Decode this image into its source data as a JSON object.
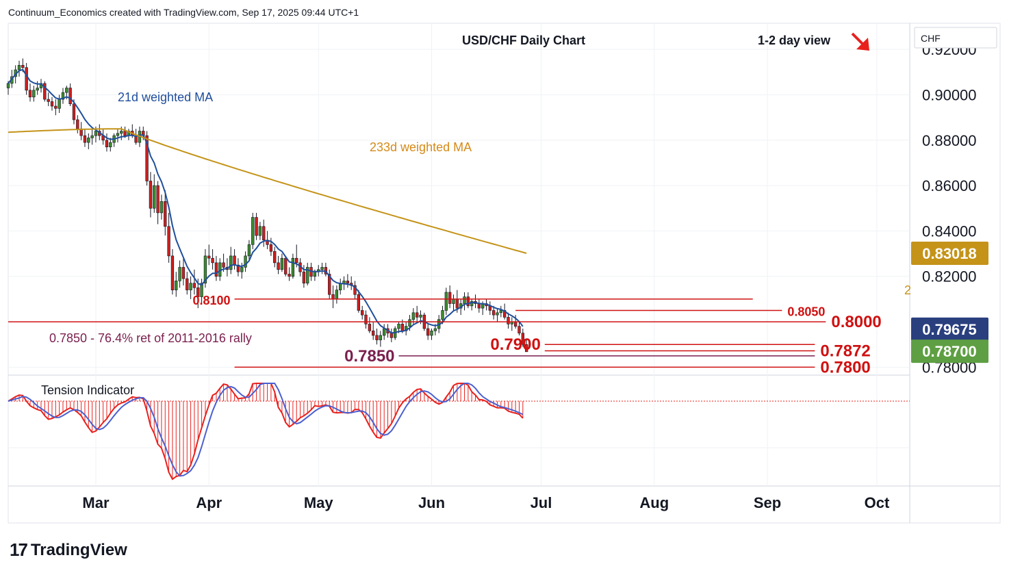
{
  "header": {
    "credit": "Continuum_Economics created with TradingView.com, Sep 17, 2025 09:44 UTC+1"
  },
  "brand": {
    "name": "TradingView",
    "logo_text": "17"
  },
  "currency_label": "CHF",
  "chart_data": {
    "type": "candlestick",
    "title": "USD/CHF Daily Chart",
    "view_text": "1-2 day view",
    "view_arrow": "down-right-arrow",
    "y_ticks": [
      "0.92000",
      "0.90000",
      "0.88000",
      "0.86000",
      "0.84000",
      "0.82000",
      "0.78000"
    ],
    "y_tick_values": [
      0.92,
      0.9,
      0.88,
      0.86,
      0.84,
      0.82,
      0.78
    ],
    "ylim": [
      0.7765,
      0.9315
    ],
    "x_months": [
      {
        "label": "Mar",
        "day": 17
      },
      {
        "label": "Apr",
        "day": 48
      },
      {
        "label": "May",
        "day": 78
      },
      {
        "label": "Jun",
        "day": 109
      },
      {
        "label": "Jul",
        "day": 139
      },
      {
        "label": "Aug",
        "day": 170
      },
      {
        "label": "Sep",
        "day": 201
      },
      {
        "label": "Oct",
        "day": 231
      }
    ],
    "day_range": [
      -7,
      240
    ],
    "price_labels": [
      {
        "text": "0.83018",
        "value": 0.83018,
        "bg": "#c49318"
      },
      {
        "text": "0.79675",
        "value": 0.79675,
        "bg": "#2a3f7e"
      },
      {
        "text": "0.78700",
        "value": 0.787,
        "bg": "#5e9f43"
      }
    ],
    "levels": [
      {
        "text": "0.8100",
        "value": 0.81,
        "from": 55,
        "to": 197,
        "label_side": "left"
      },
      {
        "text": "0.8050",
        "value": 0.805,
        "from": 132,
        "to": 205,
        "label_side": "right"
      },
      {
        "text": "0.8000",
        "value": 0.8,
        "from": -7,
        "to": 217,
        "label_side": "right"
      },
      {
        "text": "0.7900",
        "value": 0.79,
        "from": 140,
        "to": 214,
        "label_side": "left"
      },
      {
        "text": "0.7872",
        "value": 0.7872,
        "from": 140,
        "to": 214,
        "label_side": "right"
      },
      {
        "text": "0.7850",
        "value": 0.785,
        "from": 100,
        "to": 214,
        "label_side": "left"
      },
      {
        "text": "0.7800",
        "value": 0.78,
        "from": 55,
        "to": 214,
        "label_side": "right"
      }
    ],
    "annotations": {
      "ma21_label": "21d weighted MA",
      "ma233_label": "233d weighted MA",
      "fib_note": "0.7850 - 76.4% ret of 2011-2016 rally",
      "partial_label": "2"
    },
    "candles": [
      [
        -7,
        0.903,
        0.906,
        0.9,
        0.905
      ],
      [
        -6,
        0.905,
        0.911,
        0.903,
        0.908
      ],
      [
        -5,
        0.908,
        0.913,
        0.905,
        0.911
      ],
      [
        -4,
        0.911,
        0.915,
        0.908,
        0.913
      ],
      [
        -3,
        0.913,
        0.916,
        0.91,
        0.912
      ],
      [
        -2,
        0.912,
        0.914,
        0.9,
        0.902
      ],
      [
        -1,
        0.902,
        0.905,
        0.897,
        0.899
      ],
      [
        0,
        0.899,
        0.904,
        0.897,
        0.902
      ],
      [
        1,
        0.902,
        0.906,
        0.9,
        0.903
      ],
      [
        2,
        0.903,
        0.907,
        0.901,
        0.905
      ],
      [
        3,
        0.905,
        0.906,
        0.897,
        0.898
      ],
      [
        4,
        0.898,
        0.901,
        0.895,
        0.897
      ],
      [
        5,
        0.897,
        0.899,
        0.893,
        0.895
      ],
      [
        6,
        0.895,
        0.898,
        0.891,
        0.894
      ],
      [
        7,
        0.894,
        0.9,
        0.892,
        0.898
      ],
      [
        8,
        0.898,
        0.903,
        0.896,
        0.901
      ],
      [
        9,
        0.901,
        0.904,
        0.898,
        0.903
      ],
      [
        10,
        0.903,
        0.905,
        0.895,
        0.896
      ],
      [
        11,
        0.896,
        0.898,
        0.887,
        0.889
      ],
      [
        12,
        0.889,
        0.891,
        0.883,
        0.885
      ],
      [
        13,
        0.885,
        0.888,
        0.88,
        0.882
      ],
      [
        14,
        0.882,
        0.885,
        0.877,
        0.879
      ],
      [
        15,
        0.879,
        0.883,
        0.876,
        0.881
      ],
      [
        16,
        0.881,
        0.885,
        0.878,
        0.882
      ],
      [
        17,
        0.882,
        0.886,
        0.879,
        0.884
      ],
      [
        18,
        0.884,
        0.887,
        0.88,
        0.882
      ],
      [
        19,
        0.882,
        0.885,
        0.878,
        0.88
      ],
      [
        20,
        0.88,
        0.883,
        0.875,
        0.877
      ],
      [
        21,
        0.877,
        0.881,
        0.875,
        0.879
      ],
      [
        22,
        0.879,
        0.883,
        0.877,
        0.882
      ],
      [
        23,
        0.882,
        0.885,
        0.879,
        0.883
      ],
      [
        24,
        0.883,
        0.886,
        0.88,
        0.884
      ],
      [
        25,
        0.884,
        0.886,
        0.881,
        0.882
      ],
      [
        26,
        0.882,
        0.885,
        0.88,
        0.884
      ],
      [
        27,
        0.884,
        0.887,
        0.881,
        0.882
      ],
      [
        28,
        0.882,
        0.885,
        0.878,
        0.879
      ],
      [
        29,
        0.879,
        0.886,
        0.877,
        0.884
      ],
      [
        30,
        0.884,
        0.886,
        0.88,
        0.882
      ],
      [
        31,
        0.882,
        0.884,
        0.86,
        0.862
      ],
      [
        32,
        0.862,
        0.866,
        0.846,
        0.85
      ],
      [
        33,
        0.85,
        0.865,
        0.848,
        0.86
      ],
      [
        34,
        0.86,
        0.862,
        0.843,
        0.848
      ],
      [
        35,
        0.848,
        0.856,
        0.845,
        0.853
      ],
      [
        36,
        0.853,
        0.858,
        0.838,
        0.842
      ],
      [
        37,
        0.842,
        0.848,
        0.826,
        0.829
      ],
      [
        38,
        0.829,
        0.832,
        0.812,
        0.814
      ],
      [
        39,
        0.814,
        0.822,
        0.811,
        0.818
      ],
      [
        40,
        0.818,
        0.827,
        0.815,
        0.824
      ],
      [
        41,
        0.824,
        0.828,
        0.816,
        0.819
      ],
      [
        42,
        0.819,
        0.822,
        0.812,
        0.814
      ],
      [
        43,
        0.814,
        0.82,
        0.81,
        0.817
      ],
      [
        44,
        0.817,
        0.823,
        0.812,
        0.815
      ],
      [
        45,
        0.815,
        0.819,
        0.806,
        0.811
      ],
      [
        46,
        0.811,
        0.819,
        0.808,
        0.817
      ],
      [
        47,
        0.817,
        0.832,
        0.815,
        0.829
      ],
      [
        48,
        0.829,
        0.834,
        0.825,
        0.828
      ],
      [
        49,
        0.828,
        0.832,
        0.823,
        0.826
      ],
      [
        50,
        0.826,
        0.829,
        0.818,
        0.82
      ],
      [
        51,
        0.82,
        0.828,
        0.818,
        0.826
      ],
      [
        52,
        0.826,
        0.83,
        0.822,
        0.824
      ],
      [
        53,
        0.824,
        0.828,
        0.82,
        0.823
      ],
      [
        54,
        0.823,
        0.833,
        0.821,
        0.829
      ],
      [
        55,
        0.829,
        0.832,
        0.823,
        0.825
      ],
      [
        56,
        0.825,
        0.828,
        0.82,
        0.822
      ],
      [
        57,
        0.822,
        0.826,
        0.819,
        0.824
      ],
      [
        58,
        0.824,
        0.831,
        0.822,
        0.829
      ],
      [
        59,
        0.829,
        0.836,
        0.827,
        0.834
      ],
      [
        60,
        0.834,
        0.848,
        0.832,
        0.846
      ],
      [
        61,
        0.846,
        0.848,
        0.836,
        0.838
      ],
      [
        62,
        0.838,
        0.844,
        0.836,
        0.842
      ],
      [
        63,
        0.842,
        0.845,
        0.833,
        0.836
      ],
      [
        64,
        0.836,
        0.84,
        0.832,
        0.834
      ],
      [
        65,
        0.834,
        0.837,
        0.829,
        0.831
      ],
      [
        66,
        0.831,
        0.833,
        0.824,
        0.826
      ],
      [
        67,
        0.826,
        0.829,
        0.821,
        0.823
      ],
      [
        68,
        0.823,
        0.83,
        0.822,
        0.828
      ],
      [
        69,
        0.828,
        0.829,
        0.82,
        0.821
      ],
      [
        70,
        0.821,
        0.824,
        0.818,
        0.82
      ],
      [
        71,
        0.82,
        0.83,
        0.819,
        0.828
      ],
      [
        72,
        0.828,
        0.834,
        0.824,
        0.826
      ],
      [
        73,
        0.826,
        0.828,
        0.82,
        0.822
      ],
      [
        74,
        0.822,
        0.825,
        0.815,
        0.817
      ],
      [
        75,
        0.817,
        0.826,
        0.816,
        0.824
      ],
      [
        76,
        0.824,
        0.826,
        0.818,
        0.82
      ],
      [
        77,
        0.82,
        0.823,
        0.818,
        0.822
      ],
      [
        78,
        0.822,
        0.825,
        0.82,
        0.823
      ],
      [
        79,
        0.823,
        0.826,
        0.821,
        0.824
      ],
      [
        80,
        0.824,
        0.826,
        0.82,
        0.821
      ],
      [
        81,
        0.821,
        0.823,
        0.81,
        0.812
      ],
      [
        82,
        0.812,
        0.816,
        0.806,
        0.81
      ],
      [
        83,
        0.81,
        0.816,
        0.808,
        0.814
      ],
      [
        84,
        0.814,
        0.819,
        0.812,
        0.817
      ],
      [
        85,
        0.817,
        0.82,
        0.814,
        0.818
      ],
      [
        86,
        0.818,
        0.821,
        0.815,
        0.817
      ],
      [
        87,
        0.817,
        0.82,
        0.814,
        0.816
      ],
      [
        88,
        0.816,
        0.818,
        0.81,
        0.812
      ],
      [
        89,
        0.812,
        0.814,
        0.804,
        0.805
      ],
      [
        90,
        0.805,
        0.807,
        0.801,
        0.803
      ],
      [
        91,
        0.803,
        0.805,
        0.797,
        0.799
      ],
      [
        92,
        0.799,
        0.802,
        0.795,
        0.796
      ],
      [
        93,
        0.796,
        0.8,
        0.792,
        0.794
      ],
      [
        94,
        0.794,
        0.797,
        0.79,
        0.792
      ],
      [
        95,
        0.792,
        0.796,
        0.789,
        0.794
      ],
      [
        96,
        0.794,
        0.799,
        0.792,
        0.797
      ],
      [
        97,
        0.797,
        0.799,
        0.793,
        0.795
      ],
      [
        98,
        0.795,
        0.797,
        0.791,
        0.793
      ],
      [
        99,
        0.793,
        0.798,
        0.792,
        0.797
      ],
      [
        100,
        0.797,
        0.8,
        0.795,
        0.799
      ],
      [
        101,
        0.799,
        0.801,
        0.795,
        0.796
      ],
      [
        102,
        0.796,
        0.8,
        0.794,
        0.798
      ],
      [
        103,
        0.798,
        0.803,
        0.796,
        0.801
      ],
      [
        104,
        0.801,
        0.806,
        0.799,
        0.804
      ],
      [
        105,
        0.804,
        0.807,
        0.8,
        0.802
      ],
      [
        106,
        0.802,
        0.805,
        0.799,
        0.803
      ],
      [
        107,
        0.803,
        0.804,
        0.796,
        0.797
      ],
      [
        108,
        0.797,
        0.799,
        0.792,
        0.794
      ],
      [
        109,
        0.794,
        0.797,
        0.792,
        0.796
      ],
      [
        110,
        0.796,
        0.799,
        0.794,
        0.797
      ],
      [
        111,
        0.797,
        0.803,
        0.795,
        0.801
      ],
      [
        112,
        0.801,
        0.807,
        0.799,
        0.805
      ],
      [
        113,
        0.805,
        0.815,
        0.803,
        0.813
      ],
      [
        114,
        0.813,
        0.816,
        0.806,
        0.808
      ],
      [
        115,
        0.808,
        0.812,
        0.805,
        0.81
      ],
      [
        116,
        0.81,
        0.814,
        0.804,
        0.806
      ],
      [
        117,
        0.806,
        0.81,
        0.803,
        0.808
      ],
      [
        118,
        0.808,
        0.813,
        0.805,
        0.811
      ],
      [
        119,
        0.811,
        0.813,
        0.806,
        0.807
      ],
      [
        120,
        0.807,
        0.81,
        0.805,
        0.809
      ],
      [
        121,
        0.809,
        0.812,
        0.806,
        0.808
      ],
      [
        122,
        0.808,
        0.81,
        0.804,
        0.806
      ],
      [
        123,
        0.806,
        0.809,
        0.803,
        0.808
      ],
      [
        124,
        0.808,
        0.81,
        0.805,
        0.807
      ],
      [
        125,
        0.807,
        0.809,
        0.803,
        0.805
      ],
      [
        126,
        0.805,
        0.807,
        0.801,
        0.803
      ],
      [
        127,
        0.803,
        0.806,
        0.8,
        0.804
      ],
      [
        128,
        0.804,
        0.807,
        0.802,
        0.805
      ],
      [
        129,
        0.805,
        0.808,
        0.801,
        0.802
      ],
      [
        130,
        0.802,
        0.804,
        0.797,
        0.799
      ],
      [
        131,
        0.799,
        0.802,
        0.796,
        0.8
      ],
      [
        132,
        0.8,
        0.803,
        0.797,
        0.798
      ],
      [
        133,
        0.798,
        0.8,
        0.794,
        0.795
      ],
      [
        134,
        0.795,
        0.797,
        0.789,
        0.79
      ]
    ]
  },
  "tension_indicator": {
    "label": "Tension Indicator"
  }
}
